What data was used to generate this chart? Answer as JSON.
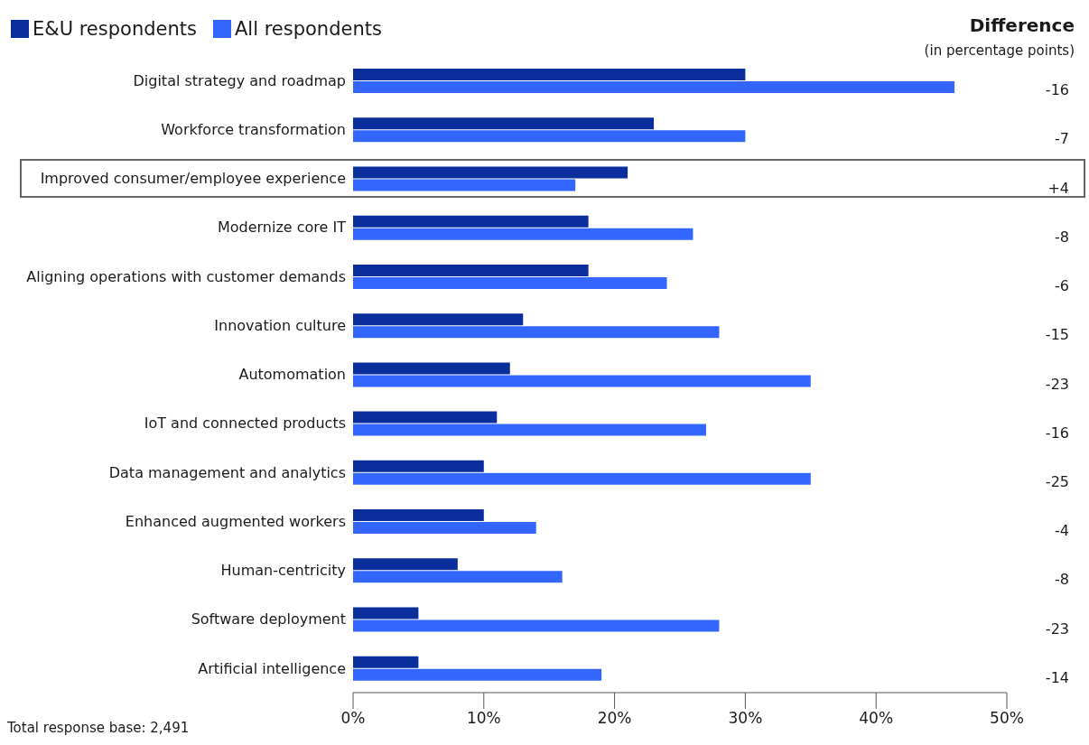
{
  "chart_data": {
    "type": "bar",
    "orientation": "horizontal",
    "categories": [
      "Digital strategy and roadmap",
      "Workforce transformation",
      "Improved consumer/employee experience",
      "Modernize core IT",
      "Aligning operations with customer demands",
      "Innovation culture",
      "Automomation",
      "IoT and connected products",
      "Data management and analytics",
      "Enhanced augmented workers",
      "Human-centricity",
      "Software deployment",
      "Artificial intelligence"
    ],
    "series": [
      {
        "name": "E&U respondents",
        "color": "#0a2f9c",
        "values": [
          30,
          23,
          21,
          18,
          18,
          13,
          12,
          11,
          10,
          10,
          8,
          5,
          5
        ]
      },
      {
        "name": "All respondents",
        "color": "#3366ff",
        "values": [
          46,
          30,
          17,
          26,
          24,
          28,
          35,
          27,
          35,
          14,
          16,
          28,
          19
        ]
      }
    ],
    "xlim": [
      0,
      50
    ],
    "xticks": [
      {
        "value": 0,
        "label": "0%"
      },
      {
        "value": 10,
        "label": "10%"
      },
      {
        "value": 20,
        "label": "20%"
      },
      {
        "value": 30,
        "label": "30%"
      },
      {
        "value": 40,
        "label": "40%"
      },
      {
        "value": 50,
        "label": "50%"
      }
    ],
    "grid": false,
    "legend": "top left",
    "annotations": [
      "Difference",
      "(in percentage points)",
      "Total response base: 2,491",
      "-16",
      "-7",
      "+4",
      "-8",
      "-6",
      "-15",
      "-23",
      "-16",
      "-25",
      "-4",
      "-8",
      "-23",
      "-14"
    ]
  }
}
